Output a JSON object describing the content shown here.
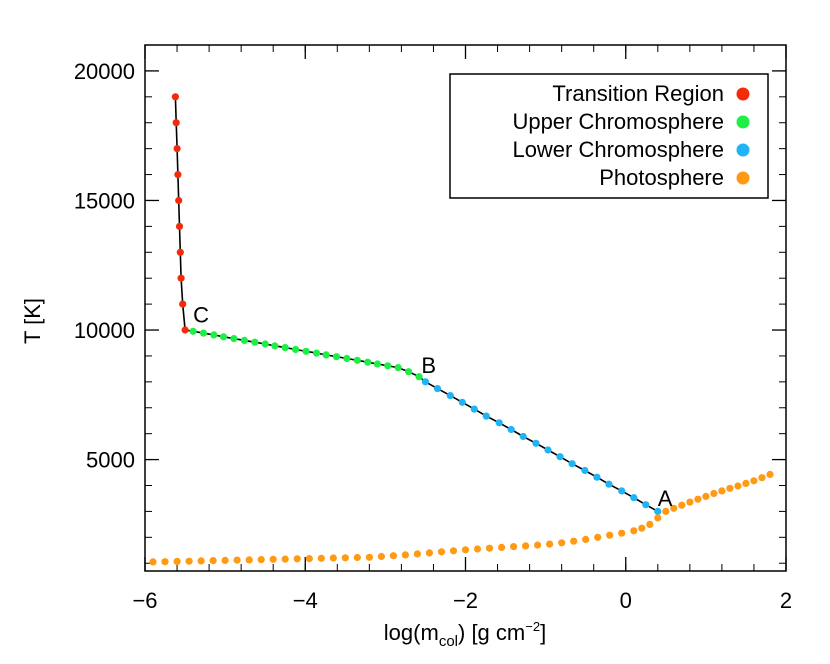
{
  "chart_data": {
    "type": "scatter",
    "xlabel": {
      "prefix": "log(m",
      "sub": "col",
      "mid": ") [g cm",
      "sup": "−2",
      "suffix": "]"
    },
    "ylabel": "T [K]",
    "xlim": [
      -6,
      2
    ],
    "ylim": [
      700,
      21000
    ],
    "xticks": [
      -6,
      -4,
      -2,
      0,
      2
    ],
    "xtick_labels": [
      "−6",
      "−4",
      "−2",
      "0",
      "2"
    ],
    "yticks": [
      5000,
      10000,
      15000,
      20000
    ],
    "ytick_labels": [
      "5000",
      "10000",
      "15000",
      "20000"
    ],
    "x_minor_step": 0.4,
    "y_minor_step": 1000,
    "legend_position": "top-right",
    "series": [
      {
        "name": "Transition Region",
        "color": "#f52a0a",
        "x": [
          -5.5,
          -5.53,
          -5.55,
          -5.56,
          -5.57,
          -5.58,
          -5.59,
          -5.6,
          -5.61,
          -5.62
        ],
        "y": [
          10000,
          11000,
          12000,
          13000,
          14000,
          15000,
          16000,
          17000,
          18000,
          19000
        ]
      },
      {
        "name": "Upper Chromosphere",
        "color": "#1eef46",
        "x": [
          -5.4,
          -5.27,
          -5.14,
          -5.02,
          -4.89,
          -4.76,
          -4.63,
          -4.5,
          -4.38,
          -4.25,
          -4.12,
          -3.99,
          -3.86,
          -3.74,
          -3.61,
          -3.48,
          -3.35,
          -3.22,
          -3.1,
          -2.97,
          -2.84,
          -2.71,
          -2.58
        ],
        "y": [
          9950,
          9880,
          9810,
          9740,
          9670,
          9600,
          9530,
          9460,
          9390,
          9320,
          9250,
          9180,
          9110,
          9040,
          8970,
          8900,
          8830,
          8760,
          8690,
          8620,
          8550,
          8390,
          8200
        ]
      },
      {
        "name": "Lower Chromosphere",
        "color": "#1eb4f5",
        "x": [
          -2.5,
          -2.35,
          -2.19,
          -2.04,
          -1.89,
          -1.74,
          -1.58,
          -1.43,
          -1.28,
          -1.12,
          -0.97,
          -0.82,
          -0.67,
          -0.51,
          -0.36,
          -0.21,
          -0.05,
          0.1,
          0.25,
          0.4
        ],
        "y": [
          8000,
          7740,
          7470,
          7210,
          6950,
          6680,
          6420,
          6160,
          5890,
          5630,
          5370,
          5110,
          4840,
          4580,
          4320,
          4050,
          3790,
          3530,
          3260,
          3000
        ]
      },
      {
        "name": "Photosphere",
        "color": "#ff9a14",
        "x": [
          -5.9,
          -5.75,
          -5.6,
          -5.45,
          -5.3,
          -5.15,
          -5.0,
          -4.85,
          -4.7,
          -4.55,
          -4.4,
          -4.25,
          -4.1,
          -3.95,
          -3.8,
          -3.65,
          -3.5,
          -3.35,
          -3.2,
          -3.05,
          -2.9,
          -2.75,
          -2.6,
          -2.45,
          -2.3,
          -2.15,
          -2.0,
          -1.85,
          -1.7,
          -1.55,
          -1.4,
          -1.25,
          -1.1,
          -0.95,
          -0.8,
          -0.65,
          -0.5,
          -0.35,
          -0.2,
          -0.05,
          0.1,
          0.2,
          0.3,
          0.4,
          0.5,
          0.6,
          0.7,
          0.8,
          0.9,
          1.0,
          1.1,
          1.2,
          1.3,
          1.4,
          1.5,
          1.6,
          1.7,
          1.8
        ],
        "y": [
          1050,
          1060,
          1070,
          1080,
          1090,
          1100,
          1110,
          1120,
          1130,
          1140,
          1150,
          1160,
          1170,
          1180,
          1190,
          1200,
          1210,
          1220,
          1230,
          1260,
          1290,
          1320,
          1360,
          1400,
          1440,
          1480,
          1520,
          1550,
          1580,
          1610,
          1640,
          1670,
          1700,
          1740,
          1790,
          1850,
          1920,
          2000,
          2080,
          2160,
          2250,
          2350,
          2500,
          2750,
          3000,
          3120,
          3240,
          3360,
          3470,
          3580,
          3690,
          3790,
          3890,
          3980,
          4080,
          4180,
          4300,
          4430
        ]
      }
    ],
    "line_path": {
      "x": [
        -5.62,
        -5.61,
        -5.6,
        -5.59,
        -5.58,
        -5.57,
        -5.56,
        -5.55,
        -5.53,
        -5.5,
        -5.4,
        -5.27,
        -5.14,
        -5.02,
        -4.89,
        -4.76,
        -4.63,
        -4.5,
        -4.38,
        -4.25,
        -4.12,
        -3.99,
        -3.86,
        -3.74,
        -3.61,
        -3.48,
        -3.35,
        -3.22,
        -3.1,
        -2.97,
        -2.84,
        -2.71,
        -2.58,
        -2.5,
        -2.35,
        -2.19,
        -2.04,
        -1.89,
        -1.74,
        -1.58,
        -1.43,
        -1.28,
        -1.12,
        -0.97,
        -0.82,
        -0.67,
        -0.51,
        -0.36,
        -0.21,
        -0.05,
        0.1,
        0.25,
        0.4
      ],
      "y": [
        19000,
        18000,
        17000,
        16000,
        15000,
        14000,
        13000,
        12000,
        11000,
        10000,
        9950,
        9880,
        9810,
        9740,
        9670,
        9600,
        9530,
        9460,
        9390,
        9320,
        9250,
        9180,
        9110,
        9040,
        8970,
        8900,
        8830,
        8760,
        8690,
        8620,
        8550,
        8390,
        8200,
        8000,
        7740,
        7470,
        7210,
        6950,
        6680,
        6420,
        6160,
        5890,
        5630,
        5370,
        5110,
        4840,
        4580,
        4320,
        4050,
        3790,
        3530,
        3260,
        3000
      ]
    },
    "annotations": [
      {
        "text": "A",
        "x": 0.4,
        "y": 3200
      },
      {
        "text": "B",
        "x": -2.55,
        "y": 8350
      },
      {
        "text": "C",
        "x": -5.4,
        "y": 10300
      }
    ]
  }
}
